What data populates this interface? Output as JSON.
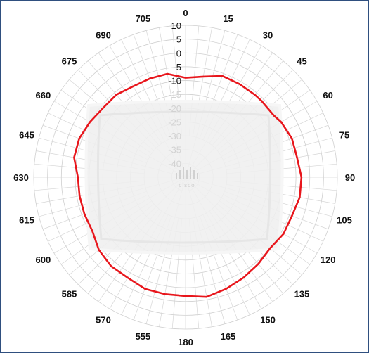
{
  "chart_data": {
    "type": "polar-line",
    "title": "",
    "angle_ticks": [
      0,
      15,
      30,
      45,
      60,
      75,
      90,
      105,
      120,
      135,
      150,
      165,
      180,
      555,
      570,
      585,
      600,
      615,
      630,
      645,
      660,
      675,
      690,
      705
    ],
    "angle_tick_labels": [
      "0",
      "15",
      "30",
      "45",
      "60",
      "75",
      "90",
      "105",
      "120",
      "135",
      "150",
      "165",
      "180",
      "555",
      "570",
      "585",
      "600",
      "615",
      "630",
      "645",
      "660",
      "675",
      "690",
      "705"
    ],
    "radial_ticks": [
      10,
      5,
      0,
      -5,
      -10,
      -15,
      -20,
      -25,
      -30,
      -35,
      -40
    ],
    "radial_tick_labels": [
      "10",
      "5",
      "0",
      "-5",
      "-10",
      "-15",
      "-20",
      "-25",
      "-30",
      "-35",
      "-40"
    ],
    "r_range": [
      -45,
      10
    ],
    "grid": true,
    "series": [
      {
        "color": "#e8161c",
        "points": [
          [
            0,
            -9
          ],
          [
            10,
            -8
          ],
          [
            20,
            -6
          ],
          [
            30,
            -6
          ],
          [
            40,
            -6
          ],
          [
            45,
            -6
          ],
          [
            55,
            -6
          ],
          [
            60,
            -5
          ],
          [
            70,
            -4
          ],
          [
            80,
            -4
          ],
          [
            90,
            -3
          ],
          [
            100,
            -3
          ],
          [
            110,
            -4
          ],
          [
            120,
            -4
          ],
          [
            130,
            -5
          ],
          [
            140,
            -4
          ],
          [
            150,
            -3
          ],
          [
            160,
            -2
          ],
          [
            170,
            -1
          ],
          [
            180,
            -2
          ],
          [
            190,
            -2
          ],
          [
            200,
            -2
          ],
          [
            210,
            -3
          ],
          [
            220,
            -3
          ],
          [
            230,
            -4
          ],
          [
            240,
            -6
          ],
          [
            250,
            -6
          ],
          [
            260,
            -6
          ],
          [
            270,
            -6
          ],
          [
            280,
            -4
          ],
          [
            290,
            -4
          ],
          [
            300,
            -5
          ],
          [
            310,
            -6
          ],
          [
            320,
            -6
          ],
          [
            330,
            -7
          ],
          [
            340,
            -7
          ],
          [
            350,
            -7
          ],
          [
            360,
            -9
          ]
        ]
      }
    ],
    "watermark_text": "cisco"
  }
}
